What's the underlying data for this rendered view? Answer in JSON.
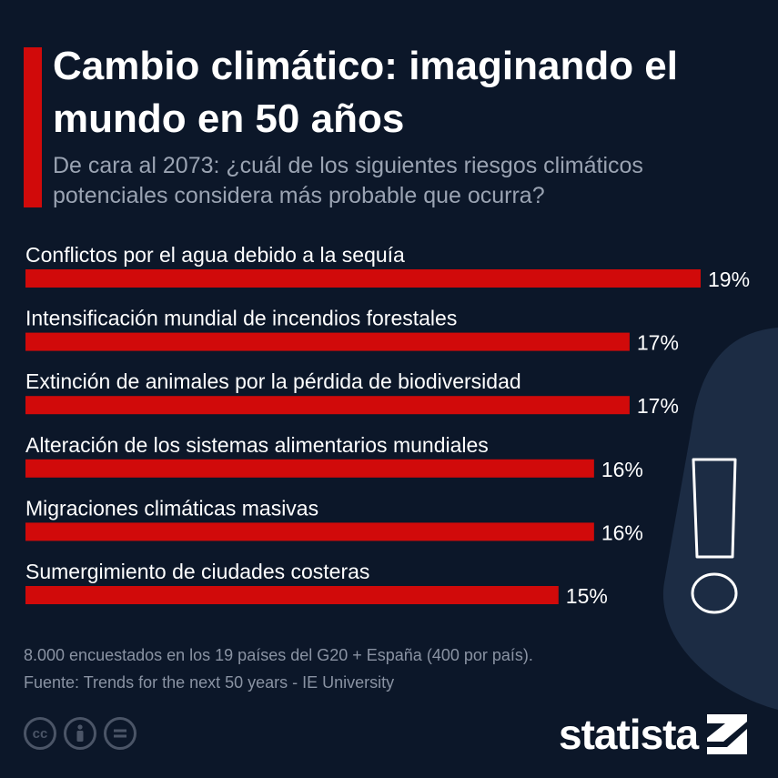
{
  "header": {
    "title": "Cambio climático: imaginando el mundo en 50 años",
    "subtitle": "De cara al 2073: ¿cuál de los siguientes riesgos climáticos potenciales considera más probable que ocurra?"
  },
  "chart_data": {
    "type": "bar",
    "orientation": "horizontal",
    "categories": [
      "Conflictos por el agua debido a la sequía",
      "Intensificación mundial de incendios forestales",
      "Extinción de animales por la pérdida de biodiversidad",
      "Alteración de los sistemas alimentarios mundiales",
      "Migraciones climáticas masivas",
      "Sumergimiento de ciudades costeras"
    ],
    "values": [
      19,
      17,
      17,
      16,
      16,
      15
    ],
    "value_labels": [
      "19%",
      "17%",
      "17%",
      "16%",
      "16%",
      "15%"
    ],
    "bar_color": "#d10a0a"
  },
  "footer": {
    "note": "8.000 encuestados en los 19 países del G20 + España (400 por país).",
    "source": "Fuente: Trends for the next 50 years - IE University",
    "license_icons": [
      "cc-icon",
      "by-icon",
      "nd-icon"
    ],
    "logo": "statista"
  },
  "colors": {
    "background": "#0c1729",
    "accent": "#d10a0a",
    "decoration": "#1c2c44"
  }
}
